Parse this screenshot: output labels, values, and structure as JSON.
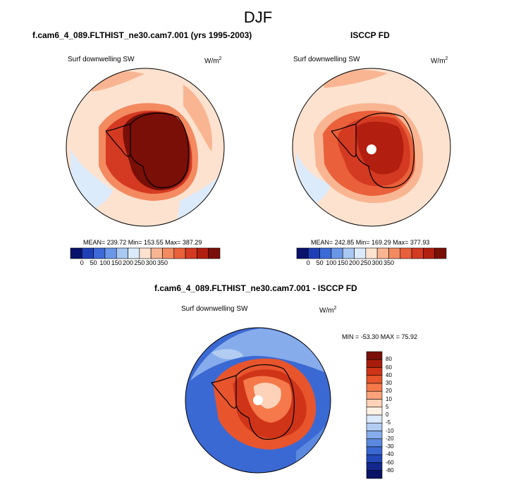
{
  "title": "DJF",
  "panels": [
    {
      "title": "f.cam6_4_089.FLTHIST_ne30.cam7.001 (yrs 1995-2003)",
      "variable": "Surf downwelling SW",
      "units": "W/m",
      "units_sup": "2",
      "stats": "MEAN= 239.72  Min= 153.55  Max= 387.29",
      "colorbar_ticks": [
        "0",
        "50",
        "100",
        "150",
        "200",
        "250",
        "300",
        "350"
      ]
    },
    {
      "title": "ISCCP FD",
      "variable": "Surf downwelling SW",
      "units": "W/m",
      "units_sup": "2",
      "stats": "MEAN= 242.85  Min= 169.29  Max= 377.93",
      "colorbar_ticks": [
        "0",
        "50",
        "100",
        "150",
        "200",
        "250",
        "300",
        "350"
      ]
    }
  ],
  "diff_panel": {
    "title": "f.cam6_4_089.FLTHIST_ne30.cam7.001 - ISCCP FD",
    "variable": "Surf downwelling SW",
    "units": "W/m",
    "units_sup": "2",
    "stats": "MIN = -53.30 MAX =  75.92",
    "colorbar_labels": [
      "80",
      "60",
      "40",
      "30",
      "20",
      "10",
      "5",
      "0",
      "-5",
      "-10",
      "-20",
      "-30",
      "-40",
      "-60",
      "-80"
    ]
  },
  "colors": {
    "seq_scale": [
      "#08116b",
      "#1f3fb8",
      "#3c6ad8",
      "#6b97e8",
      "#a9c8f2",
      "#dcebfb",
      "#fde2cf",
      "#f9b592",
      "#f48a60",
      "#e9603a",
      "#d43a22",
      "#b21f10",
      "#7a0f08"
    ],
    "div_scale": [
      "#7a0f08",
      "#a81c0c",
      "#cf3418",
      "#e8552c",
      "#f5794a",
      "#fba27a",
      "#fdd2b8",
      "#fff0e4",
      "#dce9fa",
      "#b3cdf2",
      "#86aceb",
      "#5b89df",
      "#3b69d3",
      "#2349b6",
      "#12288c",
      "#0a1466"
    ]
  }
}
